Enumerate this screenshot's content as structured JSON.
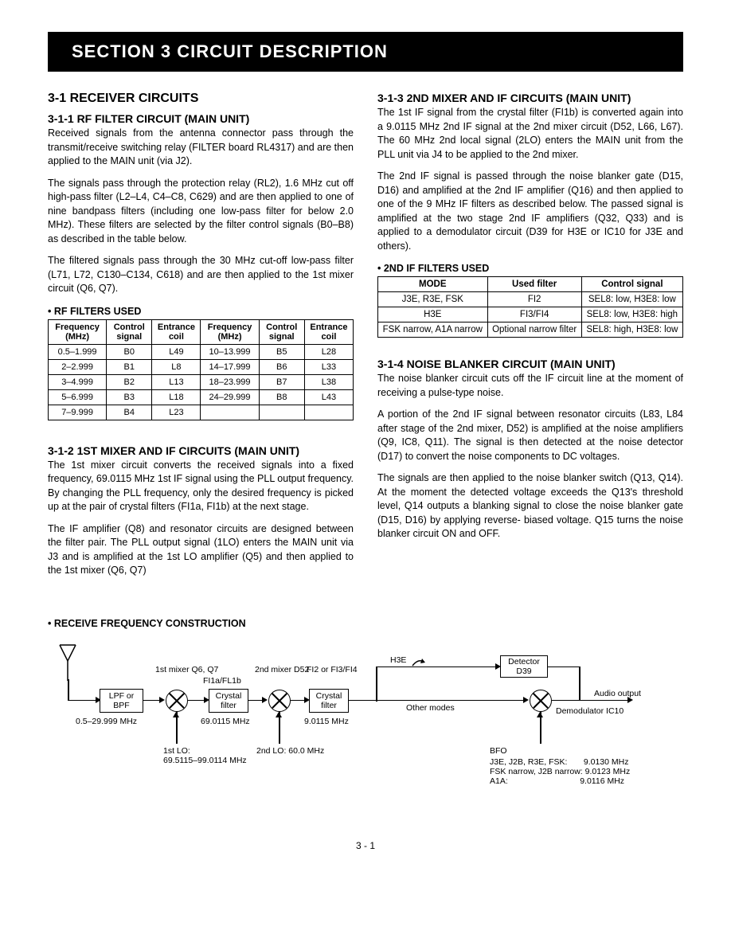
{
  "banner": "SECTION 3      CIRCUIT DESCRIPTION",
  "left": {
    "h2": "3-1 RECEIVER CIRCUITS",
    "s311_title": "3-1-1 RF FILTER CIRCUIT (MAIN UNIT)",
    "s311_p1": "Received signals from the antenna connector pass through the transmit/receive switching relay (FILTER board RL4317) and are then applied to the MAIN unit (via J2).",
    "s311_p2": "The signals pass through the protection relay (RL2), 1.6 MHz cut off high-pass filter (L2–L4, C4–C8, C629) and are then applied to one of nine bandpass filters (including one low-pass filter for below 2.0 MHz). These filters are selected by the filter control signals (B0–B8) as described in the table below.",
    "s311_p3": "The filtered signals pass through the 30 MHz cut-off low-pass filter (L71, L72, C130–C134, C618) and are then applied to the 1st mixer circuit (Q6, Q7).",
    "rf_caption": "• RF FILTERS USED",
    "rf_table": {
      "headers": [
        "Frequency (MHz)",
        "Control signal",
        "Entrance coil",
        "Frequency (MHz)",
        "Control signal",
        "Entrance coil"
      ],
      "rows": [
        [
          "0.5–1.999",
          "B0",
          "L49",
          "10–13.999",
          "B5",
          "L28"
        ],
        [
          "2–2.999",
          "B1",
          "L8",
          "14–17.999",
          "B6",
          "L33"
        ],
        [
          "3–4.999",
          "B2",
          "L13",
          "18–23.999",
          "B7",
          "L38"
        ],
        [
          "5–6.999",
          "B3",
          "L18",
          "24–29.999",
          "B8",
          "L43"
        ],
        [
          "7–9.999",
          "B4",
          "L23",
          "",
          "",
          ""
        ]
      ]
    },
    "s312_title": "3-1-2 1ST MIXER AND IF CIRCUITS (MAIN UNIT)",
    "s312_p1": "The 1st mixer circuit converts the received signals into a fixed frequency, 69.0115 MHz 1st IF signal using the PLL output frequency. By changing the PLL frequency, only the desired frequency is picked up at the pair of crystal filters (FI1a, FI1b) at the next stage.",
    "s312_p2": "The IF amplifier (Q8) and resonator circuits are designed between the filter pair. The PLL output signal (1LO) enters the MAIN unit via J3 and is amplified at the 1st LO amplifier (Q5) and then applied to the 1st mixer (Q6, Q7)"
  },
  "right": {
    "s313_title": "3-1-3 2ND MIXER AND IF CIRCUITS (MAIN UNIT)",
    "s313_p1": "The 1st IF signal from the crystal filter (FI1b) is converted again into a 9.0115 MHz 2nd IF signal at the 2nd mixer circuit (D52, L66, L67). The 60 MHz 2nd local signal (2LO) enters the MAIN unit from the PLL unit via J4 to be applied to the 2nd mixer.",
    "s313_p2": "The 2nd IF signal is passed through the noise blanker gate (D15, D16) and amplified at the 2nd IF amplifier (Q16) and then applied to one of the 9 MHz IF filters as described below. The passed signal is amplified at the two stage 2nd IF amplifiers (Q32, Q33) and is applied to a demodulator circuit (D39 for H3E or IC10 for J3E and others).",
    "if_caption": "• 2ND IF FILTERS USED",
    "if_table": {
      "headers": [
        "MODE",
        "Used filter",
        "Control signal"
      ],
      "rows": [
        [
          "J3E, R3E, FSK",
          "FI2",
          "SEL8: low, H3E8: low"
        ],
        [
          "H3E",
          "FI3/FI4",
          "SEL8: low, H3E8: high"
        ],
        [
          "FSK narrow, A1A narrow",
          "Optional narrow filter",
          "SEL8: high, H3E8: low"
        ]
      ]
    },
    "s314_title": "3-1-4 NOISE BLANKER CIRCUIT (MAIN UNIT)",
    "s314_p1": "The noise blanker circuit cuts off the IF circuit line at the moment of receiving a pulse-type noise.",
    "s314_p2": "A portion of the 2nd IF signal between resonator circuits (L83, L84 after stage of the 2nd mixer, D52) is amplified at the noise amplifiers (Q9, IC8, Q11). The signal is then detected at the noise detector (D17) to convert the noise components to DC voltages.",
    "s314_p3": "The signals are then applied to the noise blanker switch (Q13, Q14). At the moment the detected voltage exceeds the Q13's threshold level, Q14 outputs a blanking signal to close the noise blanker gate (D15, D16) by applying reverse- biased voltage. Q15 turns the noise blanker circuit ON and OFF."
  },
  "diagram_caption": "• RECEIVE FREQUENCY CONSTRUCTION",
  "diagram": {
    "lpf": "LPF or BPF",
    "freq_range": "0.5–29.999 MHz",
    "mixer1_label": "1st mixer Q6, Q7",
    "xtal1": "Crystal filter",
    "xtal1_label": "FI1a/FL1b",
    "xtal1_freq": "69.0115 MHz",
    "lo1": "1st LO:\n69.5115–99.0114 MHz",
    "mixer2_label": "2nd mixer D52",
    "xtal2": "Crystal filter",
    "xtal2_label": "FI2 or FI3/FI4",
    "xtal2_freq": "9.0115 MHz",
    "lo2": "2nd LO: 60.0 MHz",
    "h3e": "H3E",
    "other": "Other modes",
    "detector": "Detector D39",
    "demod": "Demodulator IC10",
    "audio": "Audio output",
    "bfo": "BFO",
    "bfo_lines": "J3E, J2B, R3E, FSK:       9.0130 MHz\nFSK narrow, J2B narrow: 9.0123 MHz\nA1A:                               9.0116 MHz"
  },
  "page_number": "3 - 1"
}
